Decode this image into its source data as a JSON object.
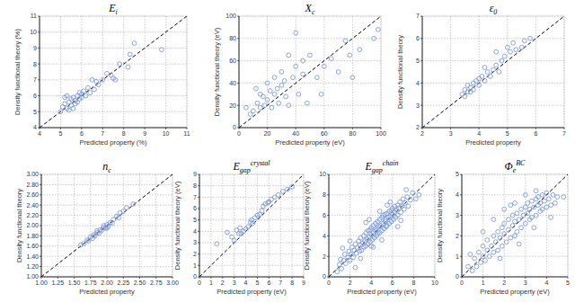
{
  "chart_data": [
    {
      "type": "scatter",
      "title": {
        "main": "E",
        "sub": "i"
      },
      "x_label": "Predicted property (%)",
      "y_label": "Density functional theory (%)",
      "color": "#6f8fd8",
      "marker": "open-circle",
      "grid": true,
      "xlim": [
        4,
        11
      ],
      "ylim": [
        4,
        11
      ],
      "xticks": [
        4,
        5,
        6,
        7,
        8,
        9,
        10,
        11
      ],
      "yticks": [
        4,
        5,
        6,
        7,
        8,
        9,
        10,
        11
      ],
      "x": [
        5.1,
        5.2,
        5.3,
        5.4,
        5.5,
        5.5,
        5.6,
        5.7,
        5.7,
        5.8,
        5.9,
        6.0,
        6.0,
        6.1,
        6.2,
        6.3,
        6.4,
        5.2,
        5.3,
        5.6,
        5.8,
        6.5,
        6.6,
        6.8,
        7.0,
        7.2,
        7.4,
        7.5,
        7.6,
        7.8,
        8.2,
        8.3,
        8.5,
        9.8,
        5.0,
        5.4,
        6.7,
        5.9
      ],
      "values": [
        5.3,
        5.5,
        5.2,
        5.6,
        5.4,
        5.8,
        5.9,
        5.5,
        5.7,
        6.0,
        5.8,
        6.1,
        5.9,
        6.3,
        6.0,
        6.5,
        6.2,
        5.9,
        6.0,
        5.2,
        5.6,
        7.0,
        6.4,
        6.7,
        7.0,
        7.4,
        7.3,
        7.1,
        7.0,
        8.0,
        7.8,
        8.6,
        9.3,
        8.9,
        5.0,
        5.1,
        6.9,
        6.2
      ]
    },
    {
      "type": "scatter",
      "title": {
        "main": "X",
        "sub": "c"
      },
      "x_label": "Predicted property (eV)",
      "y_label": "Density functional theory (eV)",
      "color": "#6f8fd8",
      "marker": "open-circle",
      "grid": true,
      "xlim": [
        0,
        100
      ],
      "ylim": [
        0,
        100
      ],
      "xticks": [
        0,
        20,
        40,
        60,
        80,
        100
      ],
      "yticks": [
        0,
        20,
        40,
        60,
        80,
        100
      ],
      "x": [
        5,
        8,
        10,
        12,
        13,
        15,
        15,
        17,
        18,
        20,
        20,
        22,
        23,
        25,
        25,
        27,
        28,
        30,
        30,
        32,
        33,
        35,
        35,
        38,
        40,
        40,
        42,
        45,
        45,
        48,
        50,
        55,
        58,
        60,
        65,
        70,
        75,
        78,
        80,
        85,
        95,
        98
      ],
      "values": [
        18,
        12,
        15,
        35,
        22,
        30,
        18,
        28,
        20,
        40,
        25,
        33,
        18,
        30,
        45,
        35,
        22,
        50,
        38,
        42,
        28,
        65,
        20,
        45,
        55,
        85,
        30,
        60,
        48,
        22,
        65,
        45,
        30,
        55,
        62,
        50,
        78,
        65,
        45,
        70,
        80,
        88
      ]
    },
    {
      "type": "scatter",
      "title": {
        "main": "ε",
        "sub": "0"
      },
      "x_label": "Predicted property",
      "y_label": "Density functional theory",
      "color": "#6f8fd8",
      "marker": "open-circle",
      "grid": true,
      "xlim": [
        2,
        7
      ],
      "ylim": [
        2,
        7
      ],
      "xticks": [
        2,
        3,
        4,
        5,
        6,
        7
      ],
      "yticks": [
        2,
        3,
        4,
        5,
        6,
        7
      ],
      "x": [
        3.4,
        3.5,
        3.6,
        3.6,
        3.7,
        3.8,
        3.8,
        3.9,
        4.0,
        4.0,
        4.1,
        4.2,
        4.3,
        4.4,
        4.5,
        4.6,
        4.7,
        4.8,
        4.9,
        5.0,
        5.1,
        5.2,
        5.3,
        5.5,
        5.6,
        5.8,
        4.6,
        4.2,
        3.5,
        3.7
      ],
      "values": [
        3.5,
        3.7,
        3.6,
        3.9,
        3.8,
        3.7,
        4.0,
        4.1,
        3.9,
        4.2,
        4.3,
        4.1,
        4.5,
        4.3,
        4.6,
        4.8,
        4.5,
        5.0,
        5.2,
        5.6,
        5.4,
        5.8,
        5.5,
        5.6,
        5.9,
        6.0,
        5.4,
        4.7,
        3.4,
        3.6
      ]
    },
    {
      "type": "scatter",
      "title": {
        "main": "n",
        "sub": "c"
      },
      "x_label": "Predicted property",
      "y_label": "Density functional theory",
      "color": "#6f8fd8",
      "marker": "open-circle",
      "grid": true,
      "xlim": [
        1,
        3
      ],
      "ylim": [
        1,
        3
      ],
      "xticks": [
        {
          "value": 1,
          "label": "1.00"
        },
        {
          "value": 1.25,
          "label": "1.25"
        },
        {
          "value": 1.5,
          "label": "1.50"
        },
        {
          "value": 1.75,
          "label": "1.75"
        },
        {
          "value": 2,
          "label": "2.00"
        },
        {
          "value": 2.25,
          "label": "2.25"
        },
        {
          "value": 2.5,
          "label": "2.50"
        },
        {
          "value": 2.75,
          "label": "2.75"
        },
        {
          "value": 3,
          "label": "3.00"
        }
      ],
      "yticks": [
        {
          "value": 1,
          "label": "1.00"
        },
        {
          "value": 1.2,
          "label": "1.20"
        },
        {
          "value": 1.4,
          "label": "1.40"
        },
        {
          "value": 1.6,
          "label": "1.60"
        },
        {
          "value": 1.8,
          "label": "1.80"
        },
        {
          "value": 2,
          "label": "2.00"
        },
        {
          "value": 2.2,
          "label": "2.20"
        },
        {
          "value": 2.4,
          "label": "2.40"
        },
        {
          "value": 2.6,
          "label": "2.60"
        },
        {
          "value": 2.8,
          "label": "2.80"
        },
        {
          "value": 3,
          "label": "3.00"
        }
      ],
      "x": [
        1.6,
        1.65,
        1.7,
        1.72,
        1.75,
        1.78,
        1.8,
        1.82,
        1.85,
        1.88,
        1.9,
        1.92,
        1.95,
        1.98,
        2.0,
        2.02,
        2.05,
        2.08,
        2.1,
        2.15,
        2.18,
        2.2,
        2.25,
        2.3,
        2.4,
        1.85,
        1.95,
        2.0
      ],
      "values": [
        1.62,
        1.65,
        1.72,
        1.7,
        1.78,
        1.75,
        1.82,
        1.8,
        1.86,
        1.85,
        1.92,
        1.9,
        1.96,
        1.95,
        2.02,
        1.98,
        2.06,
        2.05,
        2.12,
        2.18,
        2.15,
        2.25,
        2.28,
        2.35,
        2.42,
        1.9,
        2.0,
        1.95
      ]
    },
    {
      "type": "scatter",
      "title": {
        "main": "E",
        "sub": "gap",
        "sup": "crystal"
      },
      "x_label": "Predicted property (eV)",
      "y_label": "Density functional theory (eV)",
      "color": "#6f8fd8",
      "marker": "open-circle",
      "grid": true,
      "xlim": [
        0,
        9
      ],
      "ylim": [
        0,
        9
      ],
      "xticks": [
        0,
        1,
        2,
        3,
        4,
        5,
        6,
        7,
        8,
        9
      ],
      "yticks": [
        0,
        1,
        2,
        3,
        4,
        5,
        6,
        7,
        8,
        9
      ],
      "x": [
        1.5,
        2.4,
        2.8,
        3.0,
        3.2,
        3.4,
        3.6,
        3.8,
        4.0,
        4.2,
        4.4,
        4.6,
        4.8,
        5.0,
        5.2,
        5.4,
        5.5,
        5.7,
        5.9,
        6.2,
        6.5,
        6.8,
        7.2,
        7.6,
        8.0,
        3.5,
        4.5,
        6.0
      ],
      "values": [
        2.9,
        3.9,
        3.5,
        3.2,
        4.1,
        3.8,
        3.8,
        4.0,
        4.2,
        4.4,
        4.8,
        4.7,
        5.2,
        5.4,
        5.5,
        5.8,
        6.2,
        6.4,
        6.5,
        6.8,
        7.0,
        7.2,
        7.5,
        7.7,
        7.9,
        4.3,
        5.0,
        6.6
      ]
    },
    {
      "type": "scatter",
      "title": {
        "main": "E",
        "sub": "gap",
        "sup": "chain"
      },
      "x_label": "Predicted property (eV)",
      "y_label": "Density functional theory (eV)",
      "color": "#6f8fd8",
      "marker": "open-circle",
      "grid": true,
      "xlim": [
        0,
        10
      ],
      "ylim": [
        0,
        10
      ],
      "xticks": [
        0,
        2,
        4,
        6,
        8,
        10
      ],
      "yticks": [
        0,
        2,
        4,
        6,
        8,
        10
      ],
      "x": [
        1.0,
        1.2,
        1.4,
        1.5,
        1.6,
        1.8,
        1.9,
        2.0,
        2.1,
        2.2,
        2.3,
        2.4,
        2.5,
        2.6,
        2.7,
        2.8,
        2.9,
        3.0,
        3.0,
        3.1,
        3.2,
        3.3,
        3.3,
        3.4,
        3.5,
        3.5,
        3.6,
        3.7,
        3.7,
        3.8,
        3.9,
        3.9,
        4.0,
        4.0,
        4.1,
        4.2,
        4.2,
        4.3,
        4.4,
        4.4,
        4.5,
        4.5,
        4.6,
        4.6,
        4.7,
        4.8,
        4.8,
        4.9,
        5.0,
        5.0,
        5.1,
        5.1,
        5.2,
        5.3,
        5.3,
        5.4,
        5.4,
        5.5,
        5.5,
        5.6,
        5.7,
        5.7,
        5.8,
        5.9,
        5.9,
        6.0,
        6.0,
        6.1,
        6.2,
        6.2,
        6.3,
        6.4,
        6.5,
        6.5,
        6.6,
        6.7,
        6.8,
        6.9,
        7.0,
        7.1,
        7.2,
        7.4,
        7.5,
        7.7,
        7.9,
        8.2,
        8.5,
        0.8,
        1.3,
        2.0,
        3.5,
        4.2,
        5.0,
        5.8,
        6.5,
        3.0,
        2.5,
        4.8,
        6.8,
        7.3,
        1.1,
        3.8,
        5.5,
        4.0
      ],
      "values": [
        1.2,
        0.8,
        1.6,
        2.2,
        1.3,
        1.9,
        2.5,
        1.6,
        2.2,
        2.9,
        1.9,
        2.6,
        3.2,
        2.3,
        2.8,
        3.5,
        2.5,
        3.1,
        3.8,
        2.6,
        3.3,
        4.0,
        2.9,
        3.5,
        4.3,
        3.0,
        3.7,
        4.5,
        3.2,
        3.9,
        4.6,
        3.4,
        4.1,
        4.8,
        3.6,
        4.3,
        5.0,
        3.8,
        4.5,
        5.2,
        4.0,
        4.7,
        5.4,
        4.2,
        4.9,
        5.6,
        4.3,
        5.0,
        5.8,
        4.5,
        5.2,
        6.0,
        4.7,
        5.4,
        6.1,
        4.9,
        5.6,
        6.2,
        5.0,
        5.8,
        6.4,
        5.2,
        5.9,
        6.5,
        5.4,
        6.1,
        6.7,
        5.6,
        6.3,
        6.9,
        5.8,
        6.5,
        7.0,
        6.0,
        6.7,
        7.3,
        6.3,
        6.9,
        7.6,
        6.6,
        7.2,
        7.8,
        6.9,
        7.5,
        8.2,
        7.6,
        8.0,
        0.5,
        2.8,
        3.5,
        5.3,
        2.9,
        3.6,
        7.3,
        4.9,
        1.8,
        0.9,
        6.4,
        5.5,
        8.5,
        1.7,
        5.6,
        7.0,
        3.0
      ]
    },
    {
      "type": "scatter",
      "title": {
        "main": "Φ",
        "sub": "e",
        "sup": "BC"
      },
      "x_label": "Predicted property (eV)",
      "y_label": "Density functional theory",
      "color": "#6f8fd8",
      "marker": "open-circle",
      "grid": true,
      "xlim": [
        0,
        5
      ],
      "ylim": [
        0,
        5
      ],
      "xticks": [
        0,
        1,
        2,
        3,
        4,
        5
      ],
      "yticks": [
        0,
        1,
        2,
        3,
        4,
        5
      ],
      "x": [
        0.3,
        0.5,
        0.6,
        0.7,
        0.8,
        0.9,
        1.0,
        1.0,
        1.1,
        1.2,
        1.2,
        1.3,
        1.4,
        1.5,
        1.5,
        1.6,
        1.7,
        1.7,
        1.8,
        1.9,
        1.9,
        2.0,
        2.0,
        2.1,
        2.2,
        2.2,
        2.3,
        2.4,
        2.4,
        2.5,
        2.5,
        2.6,
        2.6,
        2.7,
        2.8,
        2.8,
        2.9,
        3.0,
        3.0,
        3.1,
        3.1,
        3.2,
        3.2,
        3.3,
        3.3,
        3.4,
        3.5,
        3.5,
        3.6,
        3.6,
        3.7,
        3.7,
        3.8,
        3.8,
        3.9,
        4.0,
        4.0,
        4.1,
        4.2,
        4.3,
        4.4,
        4.5,
        1.0,
        1.5,
        2.0,
        2.5,
        3.0,
        3.5,
        1.8,
        2.7,
        3.4,
        4.2,
        0.4,
        2.3,
        4.8
      ],
      "values": [
        0.5,
        0.3,
        0.9,
        0.5,
        1.2,
        0.7,
        1.0,
        1.5,
        0.8,
        1.3,
        1.8,
        1.0,
        1.5,
        2.0,
        1.2,
        1.7,
        2.2,
        1.3,
        1.9,
        2.4,
        1.5,
        2.1,
        2.6,
        1.7,
        2.3,
        2.8,
        1.9,
        2.5,
        3.0,
        2.0,
        2.7,
        3.1,
        2.2,
        2.8,
        3.3,
        2.4,
        3.0,
        3.4,
        2.6,
        3.1,
        3.6,
        2.8,
        3.3,
        3.7,
        2.9,
        3.4,
        3.8,
        3.0,
        3.5,
        3.9,
        3.2,
        3.6,
        4.0,
        3.3,
        3.7,
        4.1,
        3.4,
        3.8,
        3.5,
        4.0,
        3.6,
        3.9,
        2.2,
        2.8,
        3.3,
        3.6,
        4.0,
        4.2,
        0.9,
        1.6,
        2.4,
        2.9,
        1.1,
        3.5,
        3.9
      ]
    }
  ]
}
